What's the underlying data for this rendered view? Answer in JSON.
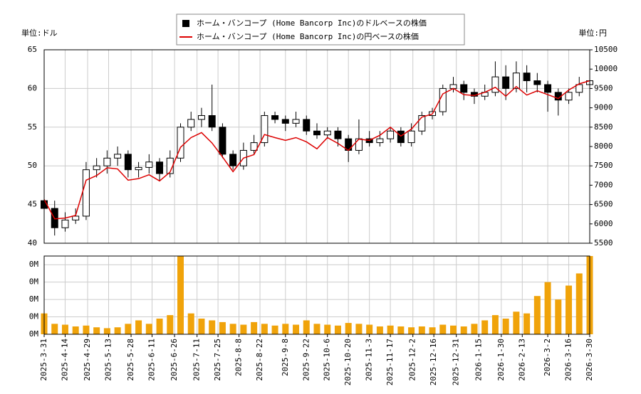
{
  "chart_data": {
    "type": "candlestick",
    "y_unit": "単位:ドル",
    "y2_unit": "単位:円",
    "legend": "top",
    "grid": true,
    "x": [
      "2025-3-31",
      "2025-4-7",
      "2025-4-14",
      "2025-4-21",
      "2025-4-28",
      "2025-5-5",
      "2025-5-12",
      "2025-5-19",
      "2025-5-26",
      "2025-6-2",
      "2025-6-9",
      "2025-6-16",
      "2025-6-23",
      "2025-6-30",
      "2025-7-7",
      "2025-7-14",
      "2025-7-21",
      "2025-7-28",
      "2025-8-4",
      "2025-8-11",
      "2025-8-18",
      "2025-8-25",
      "2025-9-1",
      "2025-9-8",
      "2025-9-15",
      "2025-9-22",
      "2025-9-29",
      "2025-10-6",
      "2025-10-13",
      "2025-10-20",
      "2025-10-27",
      "2025-11-3",
      "2025-11-10",
      "2025-11-17",
      "2025-11-24",
      "2025-12-1",
      "2025-12-8",
      "2025-12-15",
      "2025-12-22",
      "2025-12-29",
      "2026-1-5",
      "2026-1-12",
      "2026-1-19",
      "2026-1-26",
      "2026-2-2",
      "2026-2-9",
      "2026-2-16",
      "2026-2-23",
      "2026-3-2",
      "2026-3-9",
      "2026-3-16",
      "2026-3-23",
      "2026-3-30"
    ],
    "xlim": [
      "2025-3-31",
      "2026-3-30"
    ],
    "xticks": [
      "2025-3-31",
      "2025-4-14",
      "2025-4-29",
      "2025-5-13",
      "2025-5-28",
      "2025-6-11",
      "2025-6-26",
      "2025-7-11",
      "2025-7-25",
      "2025-8-8",
      "2025-8-22",
      "2025-9-8",
      "2025-9-22",
      "2025-10-6",
      "2025-10-20",
      "2025-11-3",
      "2025-11-17",
      "2025-12-2",
      "2025-12-16",
      "2025-12-31",
      "2026-1-15",
      "2026-1-30",
      "2026-2-13",
      "2026-3-2",
      "2026-3-16",
      "2026-3-30"
    ],
    "ylim": [
      40,
      65
    ],
    "yticks": [
      40,
      45,
      50,
      55,
      60,
      65
    ],
    "y2lim": [
      5500,
      10500
    ],
    "y2ticks": [
      5500,
      6000,
      6500,
      7000,
      7500,
      8000,
      8500,
      9000,
      9500,
      10000,
      10500
    ],
    "up_color": "#ffffff",
    "down_color": "#000000",
    "series": [
      {
        "name": "ホーム・バンコープ (Home Bancorp Inc)のドルベースの株価",
        "color": "#000000",
        "open": [
          45.5,
          44.5,
          42,
          43,
          43.5,
          49.5,
          50,
          51,
          51.5,
          49.5,
          49.8,
          50.5,
          49,
          51,
          55,
          56,
          56.5,
          55,
          51.5,
          50,
          52,
          53,
          56.5,
          56,
          55.5,
          56,
          54.5,
          54,
          54.5,
          53.5,
          52,
          53.5,
          53,
          53.5,
          54.5,
          53,
          54.5,
          56.5,
          57,
          60,
          60.5,
          59.5,
          59,
          59.5,
          61.5,
          60,
          62,
          61,
          60.5,
          59.5,
          58.5,
          59.5,
          60.5
        ],
        "high": [
          46.5,
          45.5,
          44,
          44.5,
          50.5,
          51,
          52,
          52.5,
          52,
          50.5,
          51.5,
          51,
          52,
          55.5,
          57,
          57.5,
          60.5,
          55.5,
          52,
          53,
          54,
          57,
          57,
          56.5,
          57,
          56.5,
          55.5,
          55,
          55,
          54,
          56,
          54.5,
          54.5,
          55,
          55,
          55.5,
          57,
          57.5,
          60.5,
          61.5,
          61,
          60,
          60.5,
          63.5,
          63,
          63.5,
          63,
          62,
          61,
          60,
          60,
          61.5,
          62
        ],
        "low": [
          42,
          41,
          41.5,
          42.5,
          43,
          48.5,
          49,
          50,
          48.5,
          48.5,
          49,
          48,
          48.5,
          50.5,
          54.5,
          55,
          54.5,
          51,
          49.5,
          49.5,
          51.5,
          52.5,
          55.5,
          54.5,
          55,
          54,
          53.5,
          53.5,
          52.5,
          50.5,
          51.5,
          52.5,
          52.5,
          53,
          52.5,
          52.5,
          54,
          56,
          56.5,
          59.5,
          58.5,
          58,
          58.5,
          59,
          58.5,
          59.5,
          59.5,
          59.5,
          57,
          56.5,
          58,
          59,
          60
        ],
        "close": [
          44.5,
          42,
          43,
          43.5,
          49.5,
          50,
          51,
          51.5,
          49.5,
          49.8,
          50.5,
          49,
          51,
          55,
          56,
          56.5,
          55,
          51.5,
          50,
          52,
          53,
          56.5,
          56,
          55.5,
          56,
          54.5,
          54,
          54.5,
          53.5,
          52,
          53.5,
          53,
          53.5,
          54.5,
          53,
          54.5,
          56.5,
          57,
          60,
          60.5,
          59.5,
          59,
          59.5,
          61.5,
          60,
          62,
          61,
          60.5,
          59.5,
          58.5,
          59.5,
          60.5,
          61
        ]
      },
      {
        "name": "ホーム・バンコープ (Home Bancorp Inc)の円ベースの株価",
        "color": "#dd0000",
        "axis": "y2",
        "values": [
          6630,
          6130,
          6150,
          6220,
          7130,
          7250,
          7450,
          7420,
          7130,
          7170,
          7270,
          7110,
          7340,
          7980,
          8230,
          8360,
          8090,
          7730,
          7350,
          7700,
          7790,
          8310,
          8230,
          8160,
          8230,
          8120,
          7940,
          8230,
          8080,
          7900,
          8190,
          8160,
          8290,
          8500,
          8270,
          8450,
          8760,
          8840,
          9360,
          9500,
          9340,
          9320,
          9400,
          9530,
          9300,
          9550,
          9330,
          9440,
          9340,
          9240,
          9460,
          9620,
          9700
        ]
      }
    ],
    "volume": {
      "color": "#f0a30a",
      "ylim": [
        0,
        450000
      ],
      "yticks": [
        {
          "value": 0,
          "label": "0M"
        },
        {
          "value": 100000,
          "label": "0M"
        },
        {
          "value": 200000,
          "label": "0M"
        },
        {
          "value": 300000,
          "label": "0M"
        },
        {
          "value": 400000,
          "label": "0M"
        }
      ],
      "values": [
        120000,
        60000,
        55000,
        45000,
        50000,
        40000,
        35000,
        40000,
        60000,
        80000,
        60000,
        90000,
        110000,
        450000,
        120000,
        90000,
        80000,
        70000,
        60000,
        55000,
        70000,
        60000,
        50000,
        60000,
        55000,
        80000,
        60000,
        55000,
        50000,
        65000,
        60000,
        55000,
        45000,
        50000,
        45000,
        40000,
        45000,
        40000,
        55000,
        50000,
        45000,
        60000,
        80000,
        110000,
        90000,
        130000,
        120000,
        220000,
        300000,
        200000,
        280000,
        350000,
        450000
      ]
    }
  }
}
